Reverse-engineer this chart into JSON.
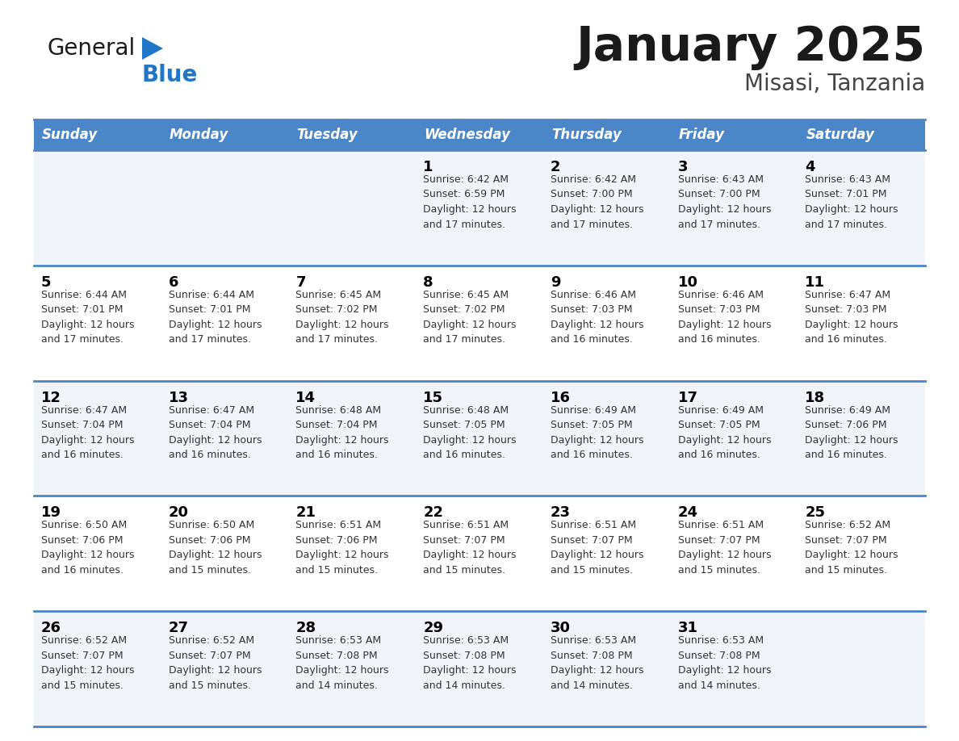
{
  "title": "January 2025",
  "subtitle": "Misasi, Tanzania",
  "header_bg": "#4a86c8",
  "header_text_color": "#ffffff",
  "days_of_week": [
    "Sunday",
    "Monday",
    "Tuesday",
    "Wednesday",
    "Thursday",
    "Friday",
    "Saturday"
  ],
  "row_bg_light": "#f0f4f8",
  "row_bg_white": "#ffffff",
  "row_separator_color": "#4a86c8",
  "day_number_color": "#000000",
  "info_text_color": "#333333",
  "logo_black": "#1a1a1a",
  "logo_blue": "#2176c7",
  "calendar": [
    [
      {
        "day": "",
        "info": ""
      },
      {
        "day": "",
        "info": ""
      },
      {
        "day": "",
        "info": ""
      },
      {
        "day": "1",
        "info": "Sunrise: 6:42 AM\nSunset: 6:59 PM\nDaylight: 12 hours\nand 17 minutes."
      },
      {
        "day": "2",
        "info": "Sunrise: 6:42 AM\nSunset: 7:00 PM\nDaylight: 12 hours\nand 17 minutes."
      },
      {
        "day": "3",
        "info": "Sunrise: 6:43 AM\nSunset: 7:00 PM\nDaylight: 12 hours\nand 17 minutes."
      },
      {
        "day": "4",
        "info": "Sunrise: 6:43 AM\nSunset: 7:01 PM\nDaylight: 12 hours\nand 17 minutes."
      }
    ],
    [
      {
        "day": "5",
        "info": "Sunrise: 6:44 AM\nSunset: 7:01 PM\nDaylight: 12 hours\nand 17 minutes."
      },
      {
        "day": "6",
        "info": "Sunrise: 6:44 AM\nSunset: 7:01 PM\nDaylight: 12 hours\nand 17 minutes."
      },
      {
        "day": "7",
        "info": "Sunrise: 6:45 AM\nSunset: 7:02 PM\nDaylight: 12 hours\nand 17 minutes."
      },
      {
        "day": "8",
        "info": "Sunrise: 6:45 AM\nSunset: 7:02 PM\nDaylight: 12 hours\nand 17 minutes."
      },
      {
        "day": "9",
        "info": "Sunrise: 6:46 AM\nSunset: 7:03 PM\nDaylight: 12 hours\nand 16 minutes."
      },
      {
        "day": "10",
        "info": "Sunrise: 6:46 AM\nSunset: 7:03 PM\nDaylight: 12 hours\nand 16 minutes."
      },
      {
        "day": "11",
        "info": "Sunrise: 6:47 AM\nSunset: 7:03 PM\nDaylight: 12 hours\nand 16 minutes."
      }
    ],
    [
      {
        "day": "12",
        "info": "Sunrise: 6:47 AM\nSunset: 7:04 PM\nDaylight: 12 hours\nand 16 minutes."
      },
      {
        "day": "13",
        "info": "Sunrise: 6:47 AM\nSunset: 7:04 PM\nDaylight: 12 hours\nand 16 minutes."
      },
      {
        "day": "14",
        "info": "Sunrise: 6:48 AM\nSunset: 7:04 PM\nDaylight: 12 hours\nand 16 minutes."
      },
      {
        "day": "15",
        "info": "Sunrise: 6:48 AM\nSunset: 7:05 PM\nDaylight: 12 hours\nand 16 minutes."
      },
      {
        "day": "16",
        "info": "Sunrise: 6:49 AM\nSunset: 7:05 PM\nDaylight: 12 hours\nand 16 minutes."
      },
      {
        "day": "17",
        "info": "Sunrise: 6:49 AM\nSunset: 7:05 PM\nDaylight: 12 hours\nand 16 minutes."
      },
      {
        "day": "18",
        "info": "Sunrise: 6:49 AM\nSunset: 7:06 PM\nDaylight: 12 hours\nand 16 minutes."
      }
    ],
    [
      {
        "day": "19",
        "info": "Sunrise: 6:50 AM\nSunset: 7:06 PM\nDaylight: 12 hours\nand 16 minutes."
      },
      {
        "day": "20",
        "info": "Sunrise: 6:50 AM\nSunset: 7:06 PM\nDaylight: 12 hours\nand 15 minutes."
      },
      {
        "day": "21",
        "info": "Sunrise: 6:51 AM\nSunset: 7:06 PM\nDaylight: 12 hours\nand 15 minutes."
      },
      {
        "day": "22",
        "info": "Sunrise: 6:51 AM\nSunset: 7:07 PM\nDaylight: 12 hours\nand 15 minutes."
      },
      {
        "day": "23",
        "info": "Sunrise: 6:51 AM\nSunset: 7:07 PM\nDaylight: 12 hours\nand 15 minutes."
      },
      {
        "day": "24",
        "info": "Sunrise: 6:51 AM\nSunset: 7:07 PM\nDaylight: 12 hours\nand 15 minutes."
      },
      {
        "day": "25",
        "info": "Sunrise: 6:52 AM\nSunset: 7:07 PM\nDaylight: 12 hours\nand 15 minutes."
      }
    ],
    [
      {
        "day": "26",
        "info": "Sunrise: 6:52 AM\nSunset: 7:07 PM\nDaylight: 12 hours\nand 15 minutes."
      },
      {
        "day": "27",
        "info": "Sunrise: 6:52 AM\nSunset: 7:07 PM\nDaylight: 12 hours\nand 15 minutes."
      },
      {
        "day": "28",
        "info": "Sunrise: 6:53 AM\nSunset: 7:08 PM\nDaylight: 12 hours\nand 14 minutes."
      },
      {
        "day": "29",
        "info": "Sunrise: 6:53 AM\nSunset: 7:08 PM\nDaylight: 12 hours\nand 14 minutes."
      },
      {
        "day": "30",
        "info": "Sunrise: 6:53 AM\nSunset: 7:08 PM\nDaylight: 12 hours\nand 14 minutes."
      },
      {
        "day": "31",
        "info": "Sunrise: 6:53 AM\nSunset: 7:08 PM\nDaylight: 12 hours\nand 14 minutes."
      },
      {
        "day": "",
        "info": ""
      }
    ]
  ]
}
